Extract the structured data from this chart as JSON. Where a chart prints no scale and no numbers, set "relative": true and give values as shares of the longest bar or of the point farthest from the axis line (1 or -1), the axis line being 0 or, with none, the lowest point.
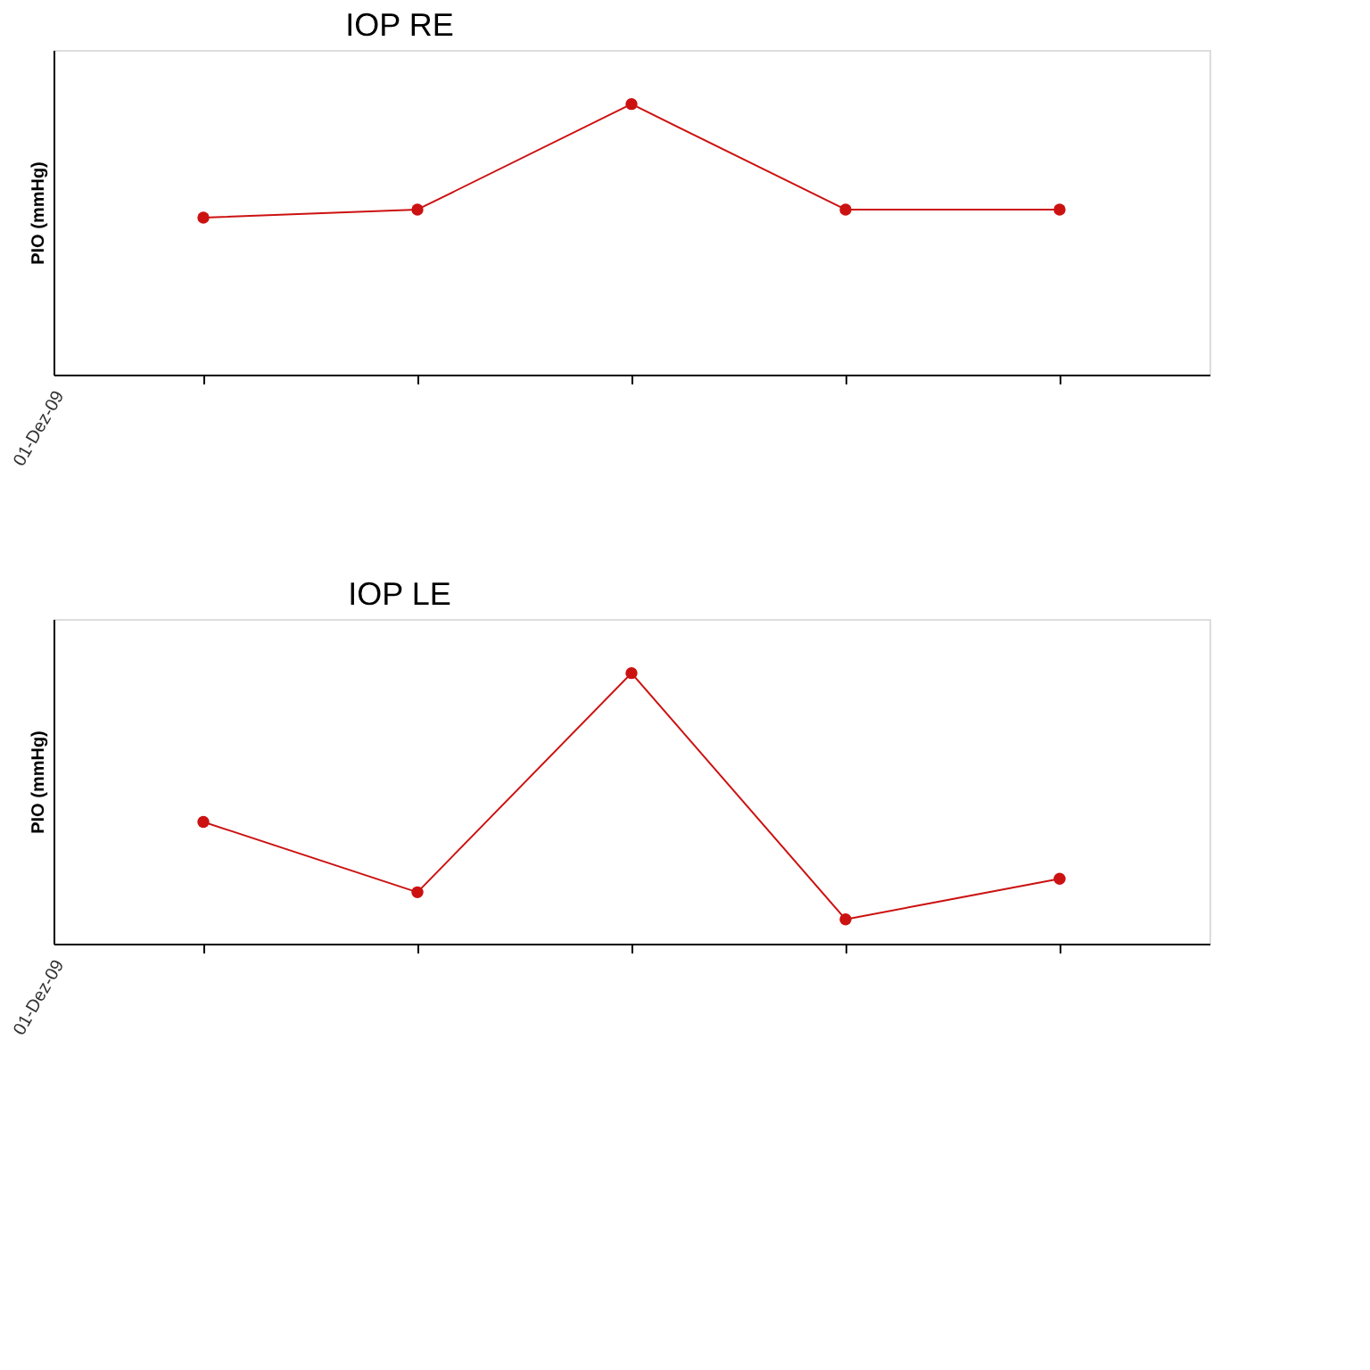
{
  "chart_data": [
    {
      "type": "line",
      "title": "IOP RE",
      "ylabel": "PIO (mmHg)",
      "relative": true,
      "categories": [
        null,
        null,
        null,
        null,
        null
      ],
      "series": [
        {
          "color": "#cc1111",
          "values": [
            0.58,
            0.61,
            1,
            0.61,
            0.61
          ]
        }
      ],
      "annotations": [
        "01-Dez-09"
      ],
      "marker": "circle",
      "line_style": "solid"
    },
    {
      "type": "line",
      "title": "IOP LE",
      "ylabel": "PIO (mmHg)",
      "relative": true,
      "categories": [
        null,
        null,
        null,
        null,
        null
      ],
      "series": [
        {
          "color": "#cc1111",
          "values": [
            0.45,
            0.19,
            1,
            0.09,
            0.24
          ]
        }
      ],
      "annotations": [
        "01-Dez-09"
      ],
      "marker": "circle",
      "line_style": "solid"
    }
  ]
}
